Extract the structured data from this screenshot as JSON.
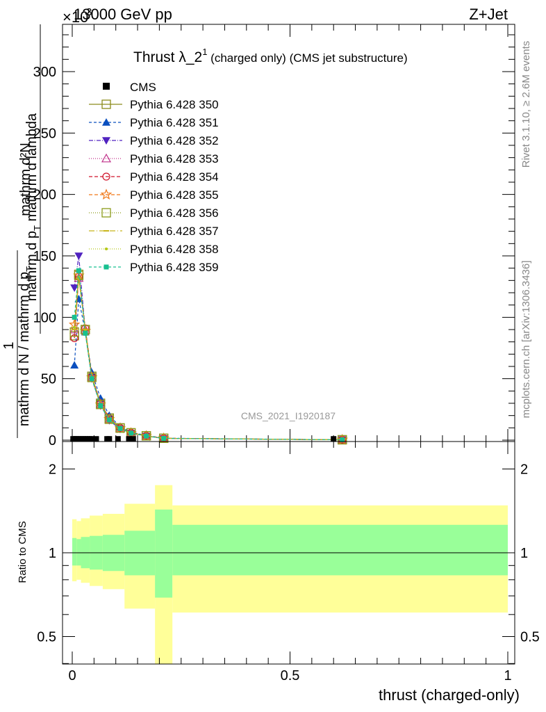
{
  "header": {
    "exp_prefix": "×10",
    "exp_value": "3",
    "energy": "13000 GeV pp",
    "process": "Z+Jet"
  },
  "plot_title": {
    "main": "Thrust λ_2",
    "sup": "1",
    "rest": " (charged only) (CMS jet substructure)"
  },
  "side_labels": {
    "rivet": "Rivet 3.1.10, ≥ 2.6M events",
    "mcplots": "mcplots.cern.ch [arXiv:1306.3436]"
  },
  "watermark": "CMS_2021_I1920187",
  "y_label": {
    "numerator": "mathrm d²N",
    "denominator_pre": "mathrm d p",
    "denominator_sub": "T",
    "denominator_post": " mathrm d lambda",
    "prefactor_top": "1",
    "prefactor_bottom": "mathrm d N / mathrm d p",
    "prefactor_sub": "T"
  },
  "ratio_ylabel": "Ratio to CMS",
  "x_label": "thrust (charged-only)",
  "colors": {
    "band_outer": "#ffff99",
    "band_inner": "#99ff99"
  },
  "chart_data": [
    {
      "type": "line",
      "panel": "main",
      "ylim": [
        0,
        335
      ],
      "xlim": [
        -0.02,
        1.0
      ],
      "x_ticks": [
        0,
        0.5,
        1
      ],
      "y_ticks": [
        0,
        50,
        100,
        150,
        200,
        250,
        300
      ],
      "y_tick_labels": [
        "0",
        "50",
        "100",
        "150",
        "200",
        "250",
        "300"
      ],
      "x_bins": [
        0.005,
        0.015,
        0.03,
        0.045,
        0.065,
        0.085,
        0.11,
        0.135,
        0.17,
        0.21,
        0.62
      ],
      "cms_x": [
        0.002,
        0.006,
        0.01,
        0.015,
        0.02,
        0.025,
        0.03,
        0.035,
        0.04,
        0.045,
        0.055,
        0.08,
        0.085,
        0.105,
        0.13,
        0.14,
        0.6
      ],
      "cms_values": [
        1,
        1,
        1,
        1,
        1,
        1,
        1,
        1,
        1,
        1,
        1,
        1,
        1,
        1,
        1,
        1,
        1
      ],
      "series": [
        {
          "name": "Pythia 6.428 350",
          "color": "#8b8b1a",
          "dash": "",
          "marker": "square-open",
          "values": [
            85,
            135,
            90,
            52,
            30,
            18,
            10,
            6,
            3.5,
            1.5,
            0.3
          ]
        },
        {
          "name": "Pythia 6.428 351",
          "color": "#0a4fbf",
          "dash": "4,3",
          "marker": "triangle-up-filled",
          "values": [
            61,
            115,
            88,
            55,
            34,
            20,
            11,
            6.5,
            3.8,
            1.6,
            0.3
          ]
        },
        {
          "name": "Pythia 6.428 352",
          "color": "#5022c0",
          "dash": "6,2,1,2",
          "marker": "triangle-down-filled",
          "values": [
            124,
            150,
            88,
            50,
            28,
            16,
            9,
            5.5,
            3.2,
            1.4,
            0.3
          ]
        },
        {
          "name": "Pythia 6.428 353",
          "color": "#c0308a",
          "dash": "1,2",
          "marker": "triangle-up-open",
          "values": [
            90,
            132,
            90,
            51,
            29,
            17,
            9.5,
            5.8,
            3.4,
            1.5,
            0.3
          ]
        },
        {
          "name": "Pythia 6.428 354",
          "color": "#d0142a",
          "dash": "5,3",
          "marker": "circle-open",
          "values": [
            83,
            133,
            91,
            52,
            30,
            18,
            10,
            6,
            3.5,
            1.5,
            0.3
          ]
        },
        {
          "name": "Pythia 6.428 355",
          "color": "#f07818",
          "dash": "5,3",
          "marker": "star-open",
          "values": [
            94,
            134,
            89,
            51,
            29,
            17,
            9.6,
            5.8,
            3.4,
            1.5,
            0.3
          ]
        },
        {
          "name": "Pythia 6.428 356",
          "color": "#8b9b1a",
          "dash": "1,2",
          "marker": "square-open",
          "values": [
            88,
            134,
            90,
            51,
            29,
            17,
            9.8,
            5.9,
            3.5,
            1.5,
            0.3
          ]
        },
        {
          "name": "Pythia 6.428 357",
          "color": "#c8b41a",
          "dash": "8,3,1,3",
          "marker": "dash",
          "values": [
            90,
            132,
            90,
            51,
            29,
            17,
            9.7,
            5.8,
            3.4,
            1.5,
            0.3
          ]
        },
        {
          "name": "Pythia 6.428 358",
          "color": "#b4c814",
          "dash": "1,2",
          "marker": "dot",
          "values": [
            92,
            133,
            89,
            51,
            29,
            17,
            9.6,
            5.8,
            3.4,
            1.5,
            0.3
          ]
        },
        {
          "name": "Pythia 6.428 359",
          "color": "#18c090",
          "dash": "4,3",
          "marker": "square-filled",
          "values": [
            100,
            138,
            87,
            50,
            28,
            16.5,
            9.4,
            5.7,
            3.3,
            1.4,
            0.3
          ]
        }
      ]
    },
    {
      "type": "area",
      "panel": "ratio",
      "ylim": [
        0.4,
        2.3
      ],
      "y_scale": "log",
      "y_ticks": [
        0.5,
        1,
        2
      ],
      "y_tick_labels": [
        "0.5",
        "1",
        "2"
      ],
      "x_ticks": [
        0,
        0.5,
        1
      ],
      "x_tick_labels": [
        "0",
        "0.5",
        "1"
      ],
      "bins": [
        {
          "x0": 0.0,
          "x1": 0.01,
          "outer_lo": 0.79,
          "outer_hi": 1.32,
          "inner_lo": 0.9,
          "inner_hi": 1.13
        },
        {
          "x0": 0.01,
          "x1": 0.02,
          "outer_lo": 0.8,
          "outer_hi": 1.3,
          "inner_lo": 0.9,
          "inner_hi": 1.12
        },
        {
          "x0": 0.02,
          "x1": 0.04,
          "outer_lo": 0.78,
          "outer_hi": 1.33,
          "inner_lo": 0.88,
          "inner_hi": 1.14
        },
        {
          "x0": 0.04,
          "x1": 0.07,
          "outer_lo": 0.76,
          "outer_hi": 1.36,
          "inner_lo": 0.87,
          "inner_hi": 1.15
        },
        {
          "x0": 0.07,
          "x1": 0.12,
          "outer_lo": 0.74,
          "outer_hi": 1.38,
          "inner_lo": 0.86,
          "inner_hi": 1.16
        },
        {
          "x0": 0.12,
          "x1": 0.19,
          "outer_lo": 0.63,
          "outer_hi": 1.5,
          "inner_lo": 0.83,
          "inner_hi": 1.2
        },
        {
          "x0": 0.19,
          "x1": 0.23,
          "outer_lo": 0.33,
          "outer_hi": 1.75,
          "inner_lo": 0.69,
          "inner_hi": 1.43
        },
        {
          "x0": 0.23,
          "x1": 1.0,
          "outer_lo": 0.61,
          "outer_hi": 1.48,
          "inner_lo": 0.83,
          "inner_hi": 1.26
        }
      ],
      "reference_line": 1
    }
  ]
}
